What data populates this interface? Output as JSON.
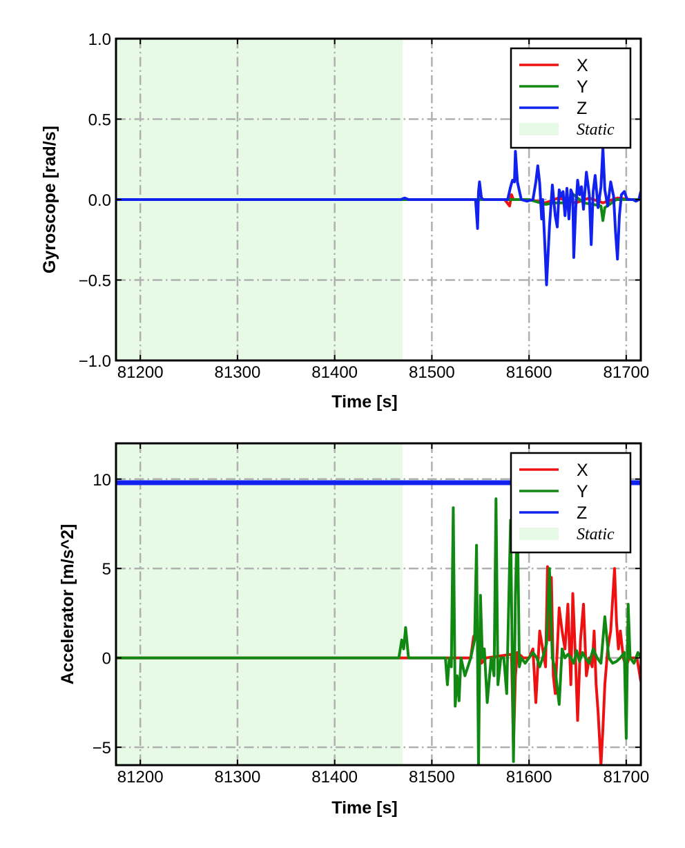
{
  "colors": {
    "x": "#ee1111",
    "y": "#118811",
    "z": "#1122ee",
    "static": "#e6fae6",
    "grid": "#b0b0b0"
  },
  "chart_data": [
    {
      "type": "line",
      "title": "",
      "xlabel": "Time [s]",
      "ylabel": "Gyroscope [rad/s]",
      "xlim": [
        81175,
        81715
      ],
      "ylim": [
        -1.0,
        1.0
      ],
      "xticks": [
        81200,
        81300,
        81400,
        81500,
        81600,
        81700
      ],
      "yticks": [
        -1.0,
        -0.5,
        0.0,
        0.5,
        1.0
      ],
      "ytick_labels": [
        "−1.0",
        "−0.5",
        "0.0",
        "0.5",
        "1.0"
      ],
      "grid": true,
      "legend_position": "upper-right",
      "legend": [
        "X",
        "Y",
        "Z",
        "Static"
      ],
      "static_region": [
        81175,
        81470
      ],
      "series": [
        {
          "name": "X",
          "x": [
            81175,
            81575,
            81580,
            81582,
            81584,
            81600,
            81617,
            81630,
            81648,
            81662,
            81676,
            81691,
            81705,
            81715
          ],
          "y": [
            0.0,
            0.0,
            -0.04,
            0.03,
            0.0,
            0.0,
            -0.02,
            0.01,
            -0.02,
            0.01,
            -0.02,
            0.01,
            0.0,
            0.0
          ]
        },
        {
          "name": "Y",
          "x": [
            81175,
            81600,
            81617,
            81626,
            81636,
            81646,
            81656,
            81666,
            81674,
            81676,
            81678,
            81690,
            81715
          ],
          "y": [
            0.0,
            0.0,
            -0.03,
            -0.02,
            -0.02,
            0.03,
            -0.02,
            -0.03,
            -0.04,
            -0.13,
            -0.05,
            0.0,
            0.0
          ]
        },
        {
          "name": "Z",
          "x": [
            81175,
            81468,
            81472,
            81476,
            81545,
            81547,
            81548,
            81549,
            81551,
            81553,
            81556,
            81560,
            81578,
            81581,
            81583,
            81585,
            81586,
            81588,
            81592,
            81598,
            81604,
            81607,
            81609,
            81611,
            81613,
            81614,
            81616,
            81618,
            81621,
            81624,
            81627,
            81629,
            81631,
            81633,
            81635,
            81637,
            81639,
            81641,
            81643,
            81645,
            81646,
            81648,
            81650,
            81652,
            81654,
            81656,
            81659,
            81662,
            81664,
            81666,
            81668,
            81671,
            81674,
            81676,
            81678,
            81681,
            81684,
            81687,
            81689,
            81691,
            81693,
            81695,
            81698,
            81701,
            81704,
            81707,
            81710,
            81713,
            81715
          ],
          "y": [
            0.0,
            0.0,
            0.01,
            0.0,
            0.0,
            -0.18,
            0.05,
            0.11,
            0.01,
            0.0,
            0.0,
            0.0,
            0.0,
            0.08,
            0.12,
            0.11,
            0.3,
            0.11,
            0.0,
            -0.01,
            0.0,
            0.11,
            0.21,
            0.1,
            -0.12,
            0.0,
            -0.25,
            -0.53,
            -0.17,
            0.09,
            -0.1,
            -0.17,
            0.06,
            0.02,
            0.05,
            -0.1,
            0.07,
            -0.12,
            0.06,
            0.03,
            -0.36,
            -0.06,
            0.12,
            0.03,
            0.08,
            -0.06,
            0.17,
            0.03,
            -0.28,
            0.05,
            0.15,
            -0.05,
            0.08,
            0.32,
            0.06,
            -0.04,
            0.11,
            0.02,
            -0.2,
            -0.37,
            -0.1,
            0.03,
            0.05,
            0.0,
            0.0,
            0.0,
            -0.01,
            0.0,
            0.05
          ]
        }
      ]
    },
    {
      "type": "line",
      "title": "",
      "xlabel": "Time [s]",
      "ylabel": "Accelerator [m/s^2]",
      "xlim": [
        81175,
        81715
      ],
      "ylim": [
        -6.0,
        12.0
      ],
      "xticks": [
        81200,
        81300,
        81400,
        81500,
        81600,
        81700
      ],
      "yticks": [
        -5,
        0,
        5,
        10
      ],
      "ytick_labels": [
        "−5",
        "0",
        "5",
        "10"
      ],
      "grid": true,
      "legend_position": "upper-right",
      "legend": [
        "X",
        "Y",
        "Z",
        "Static"
      ],
      "static_region": [
        81175,
        81470
      ],
      "series": [
        {
          "name": "X",
          "x": [
            81175,
            81540,
            81543,
            81548,
            81551,
            81556,
            81582,
            81584,
            81586,
            81588,
            81594,
            81600,
            81604,
            81607,
            81611,
            81614,
            81617,
            81619,
            81621,
            81623,
            81625,
            81627,
            81631,
            81634,
            81637,
            81640,
            81643,
            81645,
            81648,
            81650,
            81653,
            81656,
            81659,
            81662,
            81665,
            81667,
            81669,
            81671,
            81674,
            81676,
            81678,
            81681,
            81684,
            81688,
            81690,
            81692,
            81694,
            81697,
            81700,
            81703,
            81707,
            81711,
            81715
          ],
          "y": [
            0.0,
            0.0,
            1.2,
            1.5,
            -0.3,
            0.0,
            0.2,
            -5.0,
            -1.0,
            0.3,
            0.0,
            0.0,
            0.5,
            -2.5,
            1.5,
            0.5,
            -0.5,
            5.1,
            1.0,
            4.5,
            -1.0,
            -2.0,
            2.8,
            1.5,
            0.5,
            3.0,
            -1.5,
            3.6,
            -0.3,
            -3.5,
            1.0,
            3.0,
            -1.0,
            0.0,
            -0.5,
            1.5,
            -1.5,
            -3.0,
            -6.0,
            -4.0,
            -1.5,
            0.5,
            1.5,
            5.0,
            2.0,
            0.5,
            1.5,
            0.0,
            -0.5,
            0.0,
            0.0,
            0.0,
            -1.3
          ]
        },
        {
          "name": "Y",
          "x": [
            81175,
            81466,
            81469,
            81471,
            81473,
            81476,
            81514,
            81516,
            81518,
            81520,
            81522,
            81524,
            81526,
            81528,
            81530,
            81534,
            81540,
            81544,
            81546,
            81548,
            81550,
            81552,
            81554,
            81557,
            81561,
            81564,
            81566,
            81568,
            81571,
            81574,
            81577,
            81581,
            81584,
            81586,
            81588,
            81590,
            81592,
            81596,
            81600,
            81604,
            81608,
            81611,
            81614,
            81618,
            81621,
            81624,
            81627,
            81631,
            81634,
            81637,
            81640,
            81643,
            81646,
            81649,
            81652,
            81655,
            81658,
            81662,
            81666,
            81670,
            81674,
            81678,
            81682,
            81686,
            81690,
            81694,
            81698,
            81700,
            81702,
            81704,
            81708,
            81712,
            81715
          ],
          "y": [
            0.0,
            0.0,
            1.0,
            0.5,
            1.7,
            0.0,
            0.0,
            -1.5,
            0.0,
            -0.5,
            8.4,
            -2.7,
            -1.0,
            -2.4,
            0.0,
            -1.0,
            0.0,
            1.0,
            6.3,
            -6.0,
            3.5,
            0.0,
            0.5,
            -2.5,
            0.0,
            -1.0,
            8.9,
            -1.5,
            0.0,
            0.0,
            -2.0,
            7.7,
            -5.8,
            3.5,
            8.1,
            -0.5,
            0.0,
            -0.3,
            0.0,
            0.3,
            0.0,
            -0.5,
            0.0,
            0.8,
            5.0,
            0.0,
            -0.7,
            -2.6,
            0.5,
            0.0,
            0.2,
            0.0,
            -0.3,
            0.4,
            -0.2,
            0.3,
            0.0,
            -0.3,
            0.5,
            0.0,
            -0.3,
            2.3,
            0.0,
            -0.3,
            -0.2,
            0.0,
            0.3,
            -4.5,
            3.0,
            0.0,
            -0.3,
            0.3,
            0.0
          ]
        },
        {
          "name": "Z",
          "x": [
            81175,
            81715
          ],
          "y": [
            9.8,
            9.8
          ]
        }
      ]
    }
  ]
}
